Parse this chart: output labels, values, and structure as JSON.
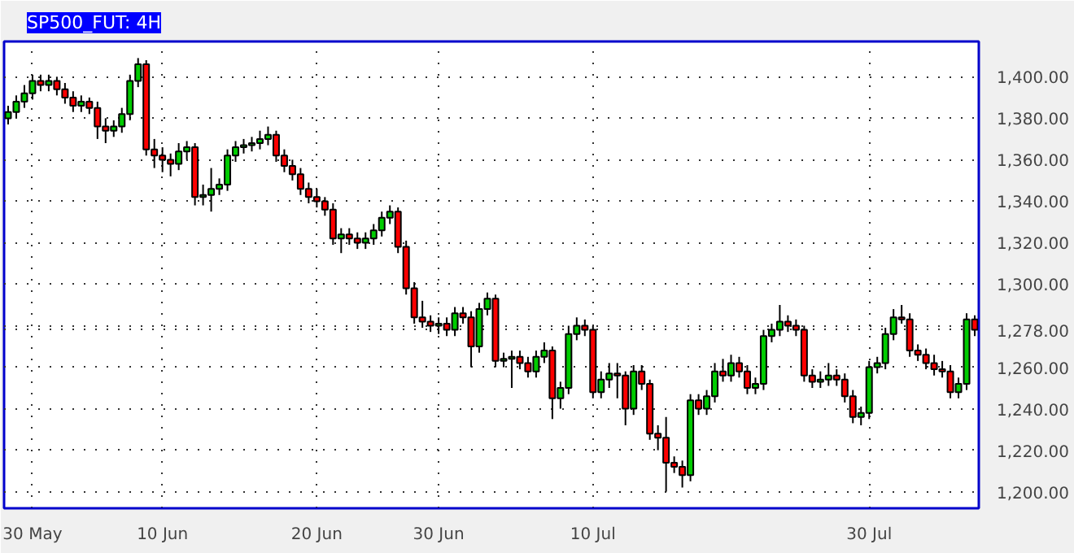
{
  "chart_data": {
    "type": "candlestick",
    "title": "SP500_FUT: 4H",
    "ohlc": [
      [
        1380,
        1386,
        1377,
        1383
      ],
      [
        1383,
        1391,
        1380,
        1388
      ],
      [
        1388,
        1396,
        1385,
        1392
      ],
      [
        1392,
        1401,
        1389,
        1398
      ],
      [
        1398,
        1401,
        1393,
        1396
      ],
      [
        1396,
        1401,
        1393,
        1398
      ],
      [
        1398,
        1400,
        1391,
        1394
      ],
      [
        1394,
        1397,
        1387,
        1390
      ],
      [
        1390,
        1393,
        1383,
        1386
      ],
      [
        1386,
        1391,
        1383,
        1388
      ],
      [
        1388,
        1390,
        1382,
        1385
      ],
      [
        1385,
        1388,
        1370,
        1376
      ],
      [
        1376,
        1380,
        1368,
        1374
      ],
      [
        1374,
        1379,
        1371,
        1376
      ],
      [
        1376,
        1385,
        1373,
        1382
      ],
      [
        1382,
        1401,
        1379,
        1398
      ],
      [
        1398,
        1409,
        1395,
        1406
      ],
      [
        1406,
        1408,
        1362,
        1365
      ],
      [
        1365,
        1370,
        1356,
        1362
      ],
      [
        1362,
        1366,
        1354,
        1360
      ],
      [
        1360,
        1363,
        1352,
        1358
      ],
      [
        1358,
        1368,
        1355,
        1364
      ],
      [
        1364,
        1369,
        1360,
        1366
      ],
      [
        1366,
        1368,
        1338,
        1342
      ],
      [
        1342,
        1348,
        1338,
        1343
      ],
      [
        1343,
        1356,
        1335,
        1346
      ],
      [
        1346,
        1351,
        1343,
        1348
      ],
      [
        1348,
        1365,
        1345,
        1362
      ],
      [
        1362,
        1369,
        1359,
        1366
      ],
      [
        1366,
        1370,
        1363,
        1367
      ],
      [
        1367,
        1371,
        1364,
        1368
      ],
      [
        1368,
        1374,
        1365,
        1370
      ],
      [
        1370,
        1376,
        1367,
        1372
      ],
      [
        1372,
        1374,
        1359,
        1362
      ],
      [
        1362,
        1365,
        1354,
        1357
      ],
      [
        1357,
        1360,
        1350,
        1353
      ],
      [
        1353,
        1356,
        1343,
        1346
      ],
      [
        1346,
        1349,
        1339,
        1342
      ],
      [
        1342,
        1346,
        1337,
        1340
      ],
      [
        1340,
        1342,
        1333,
        1336
      ],
      [
        1336,
        1339,
        1319,
        1322
      ],
      [
        1322,
        1327,
        1315,
        1324
      ],
      [
        1324,
        1327,
        1319,
        1322
      ],
      [
        1322,
        1325,
        1317,
        1320
      ],
      [
        1320,
        1325,
        1317,
        1322
      ],
      [
        1322,
        1329,
        1319,
        1326
      ],
      [
        1326,
        1335,
        1323,
        1332
      ],
      [
        1332,
        1338,
        1329,
        1335
      ],
      [
        1335,
        1337,
        1315,
        1318
      ],
      [
        1318,
        1321,
        1295,
        1298
      ],
      [
        1298,
        1301,
        1281,
        1284
      ],
      [
        1284,
        1292,
        1279,
        1282
      ],
      [
        1282,
        1285,
        1277,
        1280
      ],
      [
        1280,
        1284,
        1276,
        1281
      ],
      [
        1281,
        1284,
        1275,
        1278
      ],
      [
        1278,
        1289,
        1275,
        1286
      ],
      [
        1286,
        1289,
        1281,
        1284
      ],
      [
        1284,
        1287,
        1260,
        1270
      ],
      [
        1270,
        1291,
        1267,
        1288
      ],
      [
        1288,
        1296,
        1285,
        1293
      ],
      [
        1293,
        1295,
        1260,
        1263
      ],
      [
        1263,
        1267,
        1260,
        1264
      ],
      [
        1264,
        1268,
        1250,
        1265
      ],
      [
        1265,
        1268,
        1259,
        1262
      ],
      [
        1262,
        1265,
        1255,
        1258
      ],
      [
        1258,
        1268,
        1255,
        1265
      ],
      [
        1265,
        1272,
        1262,
        1268
      ],
      [
        1268,
        1270,
        1235,
        1245
      ],
      [
        1245,
        1253,
        1240,
        1250
      ],
      [
        1250,
        1280,
        1247,
        1276
      ],
      [
        1276,
        1284,
        1273,
        1280
      ],
      [
        1280,
        1283,
        1275,
        1278
      ],
      [
        1278,
        1280,
        1245,
        1248
      ],
      [
        1248,
        1258,
        1245,
        1254
      ],
      [
        1254,
        1262,
        1250,
        1257
      ],
      [
        1257,
        1262,
        1245,
        1256
      ],
      [
        1256,
        1258,
        1232,
        1240
      ],
      [
        1240,
        1261,
        1237,
        1258
      ],
      [
        1258,
        1261,
        1249,
        1252
      ],
      [
        1252,
        1254,
        1225,
        1228
      ],
      [
        1228,
        1232,
        1220,
        1226
      ],
      [
        1226,
        1236,
        1200,
        1214
      ],
      [
        1214,
        1217,
        1209,
        1212
      ],
      [
        1212,
        1215,
        1202,
        1208
      ],
      [
        1208,
        1247,
        1205,
        1244
      ],
      [
        1244,
        1247,
        1237,
        1240
      ],
      [
        1240,
        1249,
        1237,
        1246
      ],
      [
        1246,
        1262,
        1243,
        1258
      ],
      [
        1258,
        1264,
        1253,
        1256
      ],
      [
        1256,
        1266,
        1253,
        1262
      ],
      [
        1262,
        1265,
        1255,
        1258
      ],
      [
        1258,
        1261,
        1247,
        1250
      ],
      [
        1250,
        1255,
        1247,
        1252
      ],
      [
        1252,
        1278,
        1249,
        1275
      ],
      [
        1275,
        1281,
        1272,
        1278
      ],
      [
        1278,
        1290,
        1275,
        1282
      ],
      [
        1282,
        1285,
        1277,
        1280
      ],
      [
        1280,
        1283,
        1275,
        1278
      ],
      [
        1278,
        1280,
        1253,
        1256
      ],
      [
        1256,
        1259,
        1250,
        1253
      ],
      [
        1253,
        1258,
        1250,
        1254
      ],
      [
        1254,
        1262,
        1251,
        1256
      ],
      [
        1256,
        1259,
        1251,
        1254
      ],
      [
        1254,
        1257,
        1243,
        1246
      ],
      [
        1246,
        1249,
        1233,
        1236
      ],
      [
        1236,
        1241,
        1232,
        1238
      ],
      [
        1238,
        1263,
        1235,
        1260
      ],
      [
        1260,
        1265,
        1257,
        1262
      ],
      [
        1262,
        1279,
        1259,
        1276
      ],
      [
        1276,
        1288,
        1273,
        1284
      ],
      [
        1284,
        1290,
        1281,
        1283
      ],
      [
        1283,
        1286,
        1265,
        1268
      ],
      [
        1268,
        1271,
        1263,
        1266
      ],
      [
        1266,
        1269,
        1259,
        1262
      ],
      [
        1262,
        1266,
        1256,
        1259
      ],
      [
        1259,
        1263,
        1255,
        1258
      ],
      [
        1258,
        1261,
        1245,
        1248
      ],
      [
        1248,
        1255,
        1245,
        1252
      ],
      [
        1252,
        1286,
        1249,
        1283
      ],
      [
        1283,
        1285,
        1275,
        1278
      ]
    ],
    "colors": [
      "#00cc00",
      "#00cc00",
      "#00cc00",
      "#00cc00",
      "#ff0000",
      "#00cc00",
      "#ff0000",
      "#ff0000",
      "#ff0000",
      "#00cc00",
      "#ff0000",
      "#ff0000",
      "#ff0000",
      "#00cc00",
      "#00cc00",
      "#00cc00",
      "#00cc00",
      "#ff0000",
      "#ff0000",
      "#ff0000",
      "#ff0000",
      "#00cc00",
      "#00cc00",
      "#ff0000",
      "#00cc00",
      "#00cc00",
      "#00cc00",
      "#00cc00",
      "#00cc00",
      "#00cc00",
      "#00cc00",
      "#00cc00",
      "#00cc00",
      "#ff0000",
      "#ff0000",
      "#ff0000",
      "#ff0000",
      "#ff0000",
      "#ff0000",
      "#ff0000",
      "#ff0000",
      "#00cc00",
      "#ff0000",
      "#ff0000",
      "#00cc00",
      "#00cc00",
      "#00cc00",
      "#00cc00",
      "#ff0000",
      "#ff0000",
      "#ff0000",
      "#ff0000",
      "#ff0000",
      "#00cc00",
      "#ff0000",
      "#00cc00",
      "#ff0000",
      "#ff0000",
      "#00cc00",
      "#00cc00",
      "#ff0000",
      "#00cc00",
      "#00cc00",
      "#ff0000",
      "#ff0000",
      "#00cc00",
      "#00cc00",
      "#ff0000",
      "#00cc00",
      "#00cc00",
      "#00cc00",
      "#ff0000",
      "#ff0000",
      "#00cc00",
      "#00cc00",
      "#ff0000",
      "#ff0000",
      "#00cc00",
      "#ff0000",
      "#ff0000",
      "#ff0000",
      "#ff0000",
      "#ff0000",
      "#ff0000",
      "#00cc00",
      "#ff0000",
      "#00cc00",
      "#00cc00",
      "#ff0000",
      "#00cc00",
      "#ff0000",
      "#ff0000",
      "#00cc00",
      "#00cc00",
      "#00cc00",
      "#00cc00",
      "#ff0000",
      "#ff0000",
      "#ff0000",
      "#ff0000",
      "#00cc00",
      "#00cc00",
      "#ff0000",
      "#ff0000",
      "#ff0000",
      "#00cc00",
      "#00cc00",
      "#00cc00",
      "#00cc00",
      "#00cc00",
      "#ff0000",
      "#ff0000",
      "#ff0000",
      "#ff0000",
      "#ff0000",
      "#ff0000",
      "#ff0000",
      "#00cc00",
      "#00cc00",
      "#ff0000"
    ],
    "categories": [
      null,
      null,
      null,
      "30 May",
      null,
      null,
      null,
      null,
      null,
      null,
      null,
      null,
      null,
      null,
      null,
      null,
      null,
      null,
      null,
      "10 Jun",
      null,
      null,
      null,
      null,
      null,
      null,
      null,
      null,
      null,
      null,
      null,
      null,
      null,
      null,
      null,
      null,
      null,
      null,
      "20 Jun",
      null,
      null,
      null,
      null,
      null,
      null,
      null,
      null,
      null,
      null,
      null,
      null,
      null,
      null,
      "30 Jun",
      null,
      null,
      null,
      null,
      null,
      null,
      null,
      null,
      null,
      null,
      null,
      null,
      null,
      null,
      null,
      null,
      null,
      null,
      "10 Jul",
      null,
      null,
      null,
      null,
      null,
      null,
      null,
      null,
      null,
      null,
      null,
      null,
      null,
      null,
      null,
      null,
      null,
      null,
      null,
      null,
      null,
      null,
      null,
      null,
      null,
      null,
      null,
      null,
      null,
      null,
      null,
      null,
      null,
      "30 Jul",
      null,
      null,
      null,
      null,
      null,
      null,
      null,
      null,
      null,
      null,
      null,
      null,
      null
    ],
    "ylim": [
      1192,
      1417
    ],
    "yticks": [
      {
        "value": 1200,
        "label": "1,200.00"
      },
      {
        "value": 1220,
        "label": "1,220.00"
      },
      {
        "value": 1240,
        "label": "1,240.00"
      },
      {
        "value": 1260,
        "label": "1,260.00"
      },
      {
        "value": 1278,
        "label": "1,278.00"
      },
      {
        "value": 1280,
        "label": null
      },
      {
        "value": 1300,
        "label": "1,300.00"
      },
      {
        "value": 1320,
        "label": "1,320.00"
      },
      {
        "value": 1340,
        "label": "1,340.00"
      },
      {
        "value": 1360,
        "label": "1,360.00"
      },
      {
        "value": 1380,
        "label": "1,380.00"
      },
      {
        "value": 1400,
        "label": "1,400.00"
      }
    ],
    "grid": true
  }
}
